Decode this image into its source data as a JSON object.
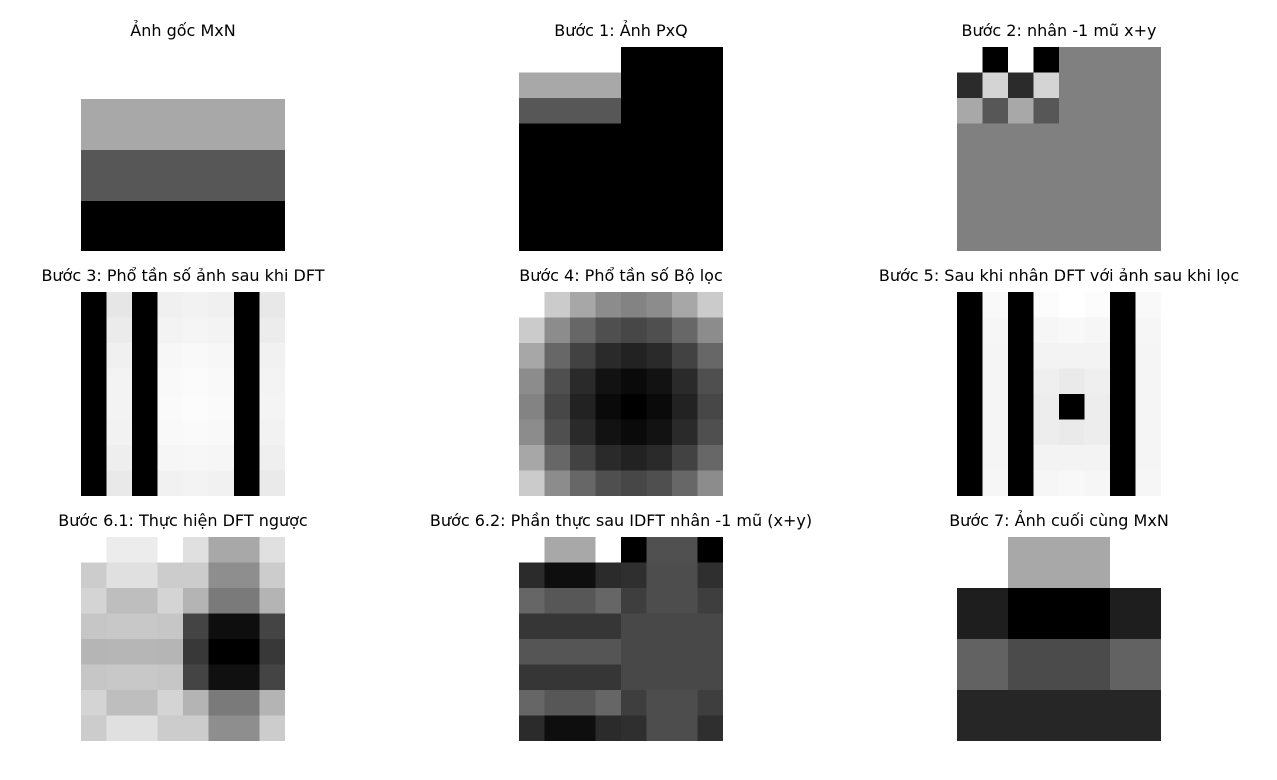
{
  "figure": {
    "panels": [
      {
        "id": "p1",
        "title": "Ảnh gốc MxN",
        "cols": 4,
        "rows": 3,
        "pixels": [
          [
            168,
            168,
            168,
            168
          ],
          [
            87,
            87,
            87,
            87
          ],
          [
            0,
            0,
            0,
            0
          ]
        ]
      },
      {
        "id": "p2",
        "title": "Bước 1: Ảnh PxQ",
        "cols": 8,
        "rows": 8,
        "pixels": [
          [
            255,
            255,
            255,
            255,
            0,
            0,
            0,
            0
          ],
          [
            168,
            168,
            168,
            168,
            0,
            0,
            0,
            0
          ],
          [
            87,
            87,
            87,
            87,
            0,
            0,
            0,
            0
          ],
          [
            0,
            0,
            0,
            0,
            0,
            0,
            0,
            0
          ],
          [
            0,
            0,
            0,
            0,
            0,
            0,
            0,
            0
          ],
          [
            0,
            0,
            0,
            0,
            0,
            0,
            0,
            0
          ],
          [
            0,
            0,
            0,
            0,
            0,
            0,
            0,
            0
          ],
          [
            0,
            0,
            0,
            0,
            0,
            0,
            0,
            0
          ]
        ]
      },
      {
        "id": "p3",
        "title": "Bước 2: nhân -1 mũ x+y",
        "cols": 8,
        "rows": 8,
        "pixels": [
          [
            255,
            0,
            255,
            0,
            128,
            128,
            128,
            128
          ],
          [
            43,
            212,
            43,
            212,
            128,
            128,
            128,
            128
          ],
          [
            168,
            87,
            168,
            87,
            128,
            128,
            128,
            128
          ],
          [
            128,
            128,
            128,
            128,
            128,
            128,
            128,
            128
          ],
          [
            128,
            128,
            128,
            128,
            128,
            128,
            128,
            128
          ],
          [
            128,
            128,
            128,
            128,
            128,
            128,
            128,
            128
          ],
          [
            128,
            128,
            128,
            128,
            128,
            128,
            128,
            128
          ],
          [
            128,
            128,
            128,
            128,
            128,
            128,
            128,
            128
          ]
        ]
      },
      {
        "id": "p4",
        "title": "Bước 3: Phổ tần số ảnh sau khi DFT",
        "cols": 8,
        "rows": 8,
        "pixels": [
          [
            0,
            230,
            0,
            240,
            242,
            240,
            0,
            232
          ],
          [
            0,
            235,
            0,
            243,
            245,
            243,
            0,
            236
          ],
          [
            0,
            240,
            0,
            247,
            249,
            247,
            0,
            241
          ],
          [
            0,
            243,
            0,
            249,
            251,
            249,
            0,
            243
          ],
          [
            0,
            243,
            0,
            250,
            252,
            250,
            0,
            244
          ],
          [
            0,
            242,
            0,
            249,
            250,
            249,
            0,
            242
          ],
          [
            0,
            238,
            0,
            246,
            247,
            246,
            0,
            239
          ],
          [
            0,
            233,
            0,
            241,
            243,
            241,
            0,
            234
          ]
        ]
      },
      {
        "id": "p5",
        "title": "Bước 4: Phổ tần số Bộ lọc",
        "cols": 8,
        "rows": 8,
        "pixels": [
          [
            255,
            203,
            167,
            140,
            131,
            140,
            167,
            203
          ],
          [
            203,
            140,
            103,
            79,
            71,
            79,
            103,
            140
          ],
          [
            167,
            103,
            66,
            42,
            34,
            42,
            66,
            103
          ],
          [
            140,
            79,
            42,
            18,
            10,
            18,
            42,
            79
          ],
          [
            131,
            71,
            34,
            10,
            0,
            10,
            34,
            71
          ],
          [
            140,
            79,
            42,
            18,
            10,
            18,
            42,
            79
          ],
          [
            167,
            103,
            66,
            42,
            34,
            42,
            66,
            103
          ],
          [
            203,
            140,
            103,
            79,
            71,
            79,
            103,
            140
          ]
        ]
      },
      {
        "id": "p6",
        "title": "Bước 5: Sau khi nhân DFT với ảnh sau khi lọc",
        "cols": 8,
        "rows": 8,
        "pixels": [
          [
            0,
            249,
            0,
            252,
            255,
            252,
            0,
            249
          ],
          [
            0,
            246,
            0,
            246,
            248,
            246,
            0,
            246
          ],
          [
            0,
            245,
            0,
            243,
            243,
            243,
            0,
            245
          ],
          [
            0,
            245,
            0,
            239,
            234,
            239,
            0,
            245
          ],
          [
            0,
            245,
            0,
            237,
            0,
            237,
            0,
            245
          ],
          [
            0,
            245,
            0,
            237,
            234,
            237,
            0,
            245
          ],
          [
            0,
            245,
            0,
            243,
            243,
            243,
            0,
            245
          ],
          [
            0,
            246,
            0,
            246,
            248,
            246,
            0,
            246
          ]
        ]
      },
      {
        "id": "p7",
        "title": "Bước 6.1: Thực hiện DFT ngược",
        "cols": 8,
        "rows": 8,
        "pixels": [
          [
            255,
            236,
            236,
            255,
            224,
            168,
            168,
            224
          ],
          [
            204,
            224,
            224,
            204,
            204,
            142,
            142,
            204
          ],
          [
            212,
            190,
            190,
            212,
            180,
            122,
            122,
            180
          ],
          [
            198,
            200,
            200,
            198,
            68,
            14,
            14,
            68
          ],
          [
            181,
            182,
            182,
            181,
            56,
            0,
            0,
            56
          ],
          [
            198,
            200,
            200,
            198,
            68,
            16,
            16,
            68
          ],
          [
            212,
            190,
            190,
            212,
            180,
            122,
            122,
            180
          ],
          [
            204,
            224,
            224,
            204,
            204,
            142,
            142,
            204
          ]
        ]
      },
      {
        "id": "p8",
        "title": "Bước 6.2: Phần thực sau IDFT nhân -1 mũ (x+y)",
        "cols": 8,
        "rows": 8,
        "pixels": [
          [
            255,
            168,
            168,
            255,
            0,
            80,
            80,
            0
          ],
          [
            43,
            14,
            14,
            43,
            47,
            77,
            77,
            47
          ],
          [
            102,
            87,
            87,
            102,
            62,
            77,
            77,
            62
          ],
          [
            54,
            54,
            54,
            54,
            72,
            72,
            72,
            72
          ],
          [
            85,
            85,
            85,
            85,
            72,
            72,
            72,
            72
          ],
          [
            54,
            54,
            54,
            54,
            72,
            72,
            72,
            72
          ],
          [
            102,
            87,
            87,
            102,
            62,
            77,
            77,
            62
          ],
          [
            43,
            14,
            14,
            43,
            47,
            77,
            77,
            47
          ]
        ]
      },
      {
        "id": "p9",
        "title": "Bước 7: Ảnh cuối cùng MxN",
        "cols": 4,
        "rows": 4,
        "pixels": [
          [
            255,
            168,
            168,
            255
          ],
          [
            30,
            0,
            0,
            30
          ],
          [
            98,
            75,
            75,
            98
          ],
          [
            38,
            38,
            38,
            38
          ]
        ]
      }
    ]
  }
}
